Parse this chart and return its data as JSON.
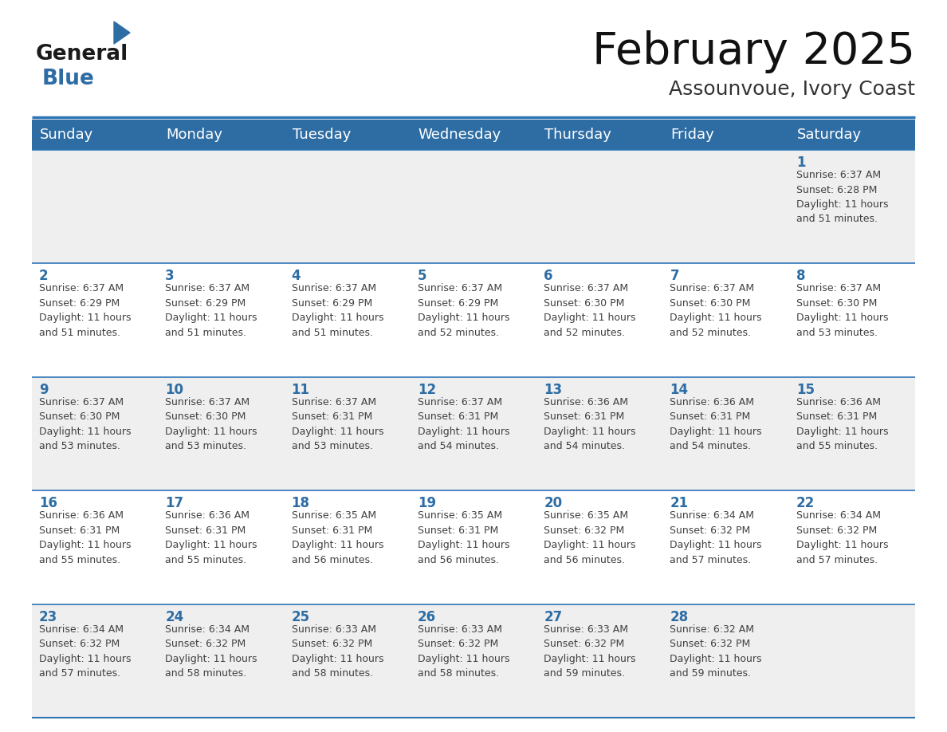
{
  "title": "February 2025",
  "subtitle": "Assounvoue, Ivory Coast",
  "header_bg": "#2E6DA4",
  "header_text_color": "#FFFFFF",
  "cell_bg_light": "#EFEFEF",
  "cell_bg_white": "#FFFFFF",
  "separator_color": "#2E75B6",
  "text_color": "#404040",
  "day_number_color": "#2E6DA4",
  "days_of_week": [
    "Sunday",
    "Monday",
    "Tuesday",
    "Wednesday",
    "Thursday",
    "Friday",
    "Saturday"
  ],
  "logo_general_color": "#1a1a1a",
  "logo_blue_color": "#2E6DA4",
  "weeks": [
    [
      {
        "day": null,
        "info": null
      },
      {
        "day": null,
        "info": null
      },
      {
        "day": null,
        "info": null
      },
      {
        "day": null,
        "info": null
      },
      {
        "day": null,
        "info": null
      },
      {
        "day": null,
        "info": null
      },
      {
        "day": 1,
        "info": "Sunrise: 6:37 AM\nSunset: 6:28 PM\nDaylight: 11 hours\nand 51 minutes."
      }
    ],
    [
      {
        "day": 2,
        "info": "Sunrise: 6:37 AM\nSunset: 6:29 PM\nDaylight: 11 hours\nand 51 minutes."
      },
      {
        "day": 3,
        "info": "Sunrise: 6:37 AM\nSunset: 6:29 PM\nDaylight: 11 hours\nand 51 minutes."
      },
      {
        "day": 4,
        "info": "Sunrise: 6:37 AM\nSunset: 6:29 PM\nDaylight: 11 hours\nand 51 minutes."
      },
      {
        "day": 5,
        "info": "Sunrise: 6:37 AM\nSunset: 6:29 PM\nDaylight: 11 hours\nand 52 minutes."
      },
      {
        "day": 6,
        "info": "Sunrise: 6:37 AM\nSunset: 6:30 PM\nDaylight: 11 hours\nand 52 minutes."
      },
      {
        "day": 7,
        "info": "Sunrise: 6:37 AM\nSunset: 6:30 PM\nDaylight: 11 hours\nand 52 minutes."
      },
      {
        "day": 8,
        "info": "Sunrise: 6:37 AM\nSunset: 6:30 PM\nDaylight: 11 hours\nand 53 minutes."
      }
    ],
    [
      {
        "day": 9,
        "info": "Sunrise: 6:37 AM\nSunset: 6:30 PM\nDaylight: 11 hours\nand 53 minutes."
      },
      {
        "day": 10,
        "info": "Sunrise: 6:37 AM\nSunset: 6:30 PM\nDaylight: 11 hours\nand 53 minutes."
      },
      {
        "day": 11,
        "info": "Sunrise: 6:37 AM\nSunset: 6:31 PM\nDaylight: 11 hours\nand 53 minutes."
      },
      {
        "day": 12,
        "info": "Sunrise: 6:37 AM\nSunset: 6:31 PM\nDaylight: 11 hours\nand 54 minutes."
      },
      {
        "day": 13,
        "info": "Sunrise: 6:36 AM\nSunset: 6:31 PM\nDaylight: 11 hours\nand 54 minutes."
      },
      {
        "day": 14,
        "info": "Sunrise: 6:36 AM\nSunset: 6:31 PM\nDaylight: 11 hours\nand 54 minutes."
      },
      {
        "day": 15,
        "info": "Sunrise: 6:36 AM\nSunset: 6:31 PM\nDaylight: 11 hours\nand 55 minutes."
      }
    ],
    [
      {
        "day": 16,
        "info": "Sunrise: 6:36 AM\nSunset: 6:31 PM\nDaylight: 11 hours\nand 55 minutes."
      },
      {
        "day": 17,
        "info": "Sunrise: 6:36 AM\nSunset: 6:31 PM\nDaylight: 11 hours\nand 55 minutes."
      },
      {
        "day": 18,
        "info": "Sunrise: 6:35 AM\nSunset: 6:31 PM\nDaylight: 11 hours\nand 56 minutes."
      },
      {
        "day": 19,
        "info": "Sunrise: 6:35 AM\nSunset: 6:31 PM\nDaylight: 11 hours\nand 56 minutes."
      },
      {
        "day": 20,
        "info": "Sunrise: 6:35 AM\nSunset: 6:32 PM\nDaylight: 11 hours\nand 56 minutes."
      },
      {
        "day": 21,
        "info": "Sunrise: 6:34 AM\nSunset: 6:32 PM\nDaylight: 11 hours\nand 57 minutes."
      },
      {
        "day": 22,
        "info": "Sunrise: 6:34 AM\nSunset: 6:32 PM\nDaylight: 11 hours\nand 57 minutes."
      }
    ],
    [
      {
        "day": 23,
        "info": "Sunrise: 6:34 AM\nSunset: 6:32 PM\nDaylight: 11 hours\nand 57 minutes."
      },
      {
        "day": 24,
        "info": "Sunrise: 6:34 AM\nSunset: 6:32 PM\nDaylight: 11 hours\nand 58 minutes."
      },
      {
        "day": 25,
        "info": "Sunrise: 6:33 AM\nSunset: 6:32 PM\nDaylight: 11 hours\nand 58 minutes."
      },
      {
        "day": 26,
        "info": "Sunrise: 6:33 AM\nSunset: 6:32 PM\nDaylight: 11 hours\nand 58 minutes."
      },
      {
        "day": 27,
        "info": "Sunrise: 6:33 AM\nSunset: 6:32 PM\nDaylight: 11 hours\nand 59 minutes."
      },
      {
        "day": 28,
        "info": "Sunrise: 6:32 AM\nSunset: 6:32 PM\nDaylight: 11 hours\nand 59 minutes."
      },
      {
        "day": null,
        "info": null
      }
    ]
  ]
}
